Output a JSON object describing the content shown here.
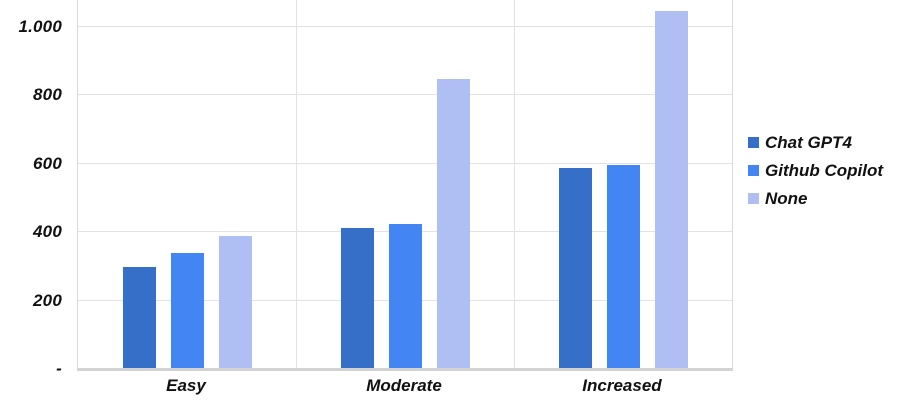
{
  "chart_data": {
    "type": "bar",
    "title": "",
    "categories": [
      "Easy",
      "Moderate",
      "Increased"
    ],
    "series": [
      {
        "name": "Chat GPT4",
        "color": "#356FC8",
        "values": [
          295,
          410,
          585
        ]
      },
      {
        "name": "Github Copilot",
        "color": "#4385F3",
        "values": [
          335,
          420,
          595
        ]
      },
      {
        "name": "None",
        "color": "#AFBFF3",
        "values": [
          385,
          845,
          1045
        ]
      }
    ],
    "y_axis": {
      "ticks": [
        {
          "value": 1000,
          "label": "1.000"
        },
        {
          "value": 800,
          "label": "800"
        },
        {
          "value": 600,
          "label": "600"
        },
        {
          "value": 400,
          "label": "400"
        },
        {
          "value": 200,
          "label": "200"
        },
        {
          "value": 0,
          "label": "-"
        }
      ],
      "axis_top_value": 1076,
      "ylim": [
        0,
        1076
      ]
    },
    "legend_position": "right",
    "grid": true,
    "xlabel": "",
    "ylabel": ""
  },
  "colors": {
    "gridline": "#E2E2E2",
    "axis_line": "#D2D2D2",
    "text": "#111111",
    "background": "#FFFFFF"
  }
}
